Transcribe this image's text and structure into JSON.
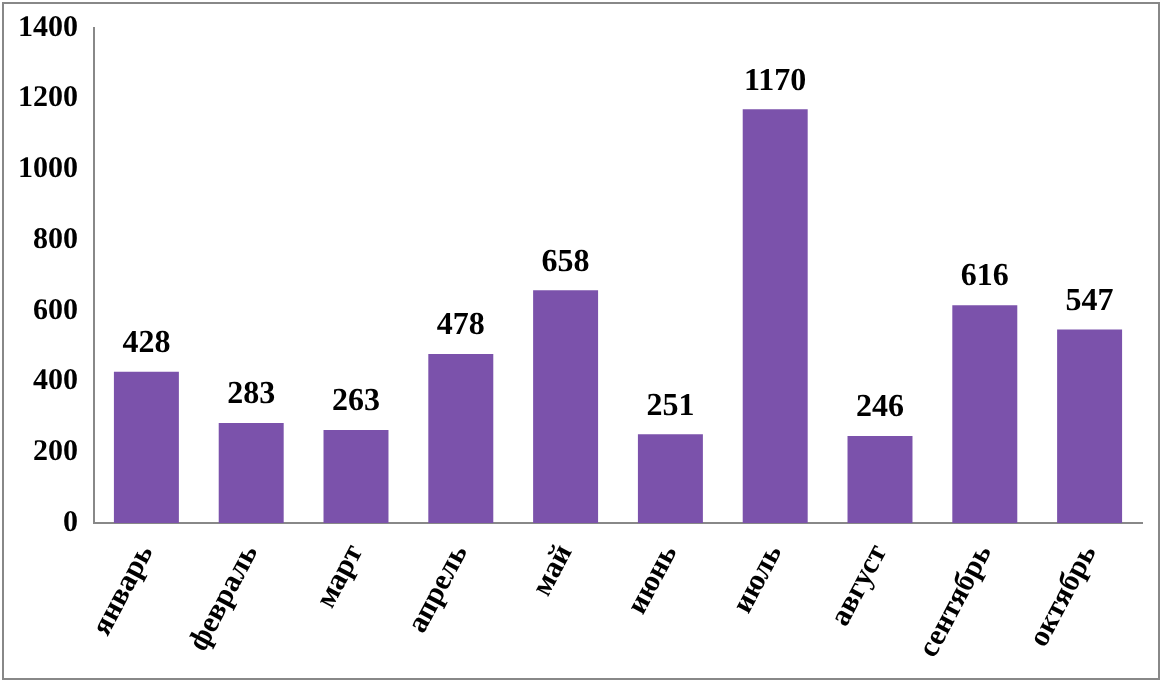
{
  "chart_data": {
    "type": "bar",
    "categories": [
      "январь",
      "февраль",
      "март",
      "апрель",
      "май",
      "июнь",
      "июль",
      "август",
      "сентябрь",
      "октябрь"
    ],
    "values": [
      428,
      283,
      263,
      478,
      658,
      251,
      1170,
      246,
      616,
      547
    ],
    "color": "#7b52ab",
    "ylim": [
      0,
      1400
    ],
    "yticks": [
      0,
      200,
      400,
      600,
      800,
      1000,
      1200,
      1400
    ],
    "grid": false,
    "legend": false,
    "data_labels": true
  }
}
